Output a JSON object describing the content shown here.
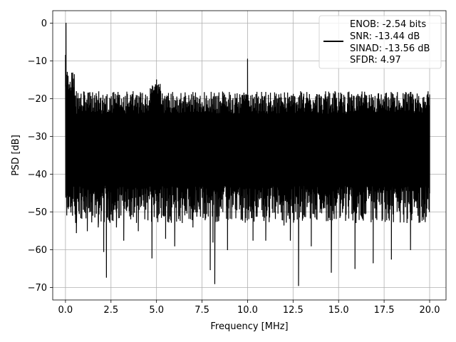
{
  "chart_data": {
    "type": "line",
    "title": "",
    "xlabel": "Frequency [MHz]",
    "ylabel": "PSD [dB]",
    "xlim": [
      -0.7,
      20.9
    ],
    "ylim": [
      -73.3,
      3.3
    ],
    "xticks": [
      0.0,
      2.5,
      5.0,
      7.5,
      10.0,
      12.5,
      15.0,
      17.5,
      20.0
    ],
    "xtick_labels": [
      "0.0",
      "2.5",
      "5.0",
      "7.5",
      "10.0",
      "12.5",
      "15.0",
      "17.5",
      "20.0"
    ],
    "yticks": [
      0,
      -10,
      -20,
      -30,
      -40,
      -50,
      -60,
      -70
    ],
    "ytick_labels": [
      "0",
      "−10",
      "−20",
      "−30",
      "−40",
      "−50",
      "−60",
      "−70"
    ],
    "grid": true,
    "legend_position": "top-right",
    "legend_entries": [
      "ENOB: -2.54 bits",
      "SNR: -13.44 dB",
      "SINAD: -13.56 dB",
      "SFDR: 4.97"
    ],
    "line_color": "#000000",
    "series": [
      {
        "name": "ENOB: -2.54 bits\nSNR: -13.44 dB\nSINAD: -13.56 dB\nSFDR: 4.97",
        "noise_floor_band_db": [
          -48,
          -21
        ],
        "points": [
          [
            0.0,
            -8.5
          ],
          [
            0.03,
            0.0
          ],
          [
            0.06,
            -40.5
          ],
          [
            0.1,
            -13
          ],
          [
            0.15,
            -25
          ],
          [
            0.25,
            -38
          ],
          [
            0.35,
            -16
          ],
          [
            0.45,
            -43
          ],
          [
            0.6,
            -55.5
          ],
          [
            0.8,
            -21
          ],
          [
            1.2,
            -55
          ],
          [
            1.4,
            -19.5
          ],
          [
            1.8,
            -54
          ],
          [
            2.1,
            -60.5
          ],
          [
            2.25,
            -67.3
          ],
          [
            2.5,
            -21
          ],
          [
            2.8,
            -54
          ],
          [
            3.2,
            -57.5
          ],
          [
            3.6,
            -19.5
          ],
          [
            4.0,
            -55
          ],
          [
            4.4,
            -19
          ],
          [
            4.75,
            -62.2
          ],
          [
            4.9,
            -17
          ],
          [
            5.0,
            -15
          ],
          [
            5.3,
            -38
          ],
          [
            5.5,
            -57
          ],
          [
            5.7,
            -20.5
          ],
          [
            6.0,
            -59
          ],
          [
            6.5,
            -21
          ],
          [
            7.0,
            -54
          ],
          [
            7.5,
            -21
          ],
          [
            7.95,
            -65.3
          ],
          [
            8.1,
            -58
          ],
          [
            8.2,
            -69
          ],
          [
            8.6,
            -21.5
          ],
          [
            8.9,
            -60
          ],
          [
            9.5,
            -21
          ],
          [
            9.8,
            -18.5
          ],
          [
            9.95,
            -28.5
          ],
          [
            10.0,
            -9.5
          ],
          [
            10.05,
            -32
          ],
          [
            10.3,
            -57.5
          ],
          [
            10.6,
            -21
          ],
          [
            11.0,
            -57.5
          ],
          [
            11.5,
            -21
          ],
          [
            12.0,
            -53.5
          ],
          [
            12.35,
            -57.5
          ],
          [
            12.8,
            -69.5
          ],
          [
            13.0,
            -21.5
          ],
          [
            13.5,
            -59
          ],
          [
            14.0,
            -22
          ],
          [
            14.6,
            -66
          ],
          [
            15.0,
            -22
          ],
          [
            15.9,
            -65
          ],
          [
            16.5,
            -21.5
          ],
          [
            16.9,
            -63.5
          ],
          [
            17.4,
            -22
          ],
          [
            17.9,
            -62.5
          ],
          [
            18.3,
            -22
          ],
          [
            18.95,
            -60
          ],
          [
            19.5,
            -21.5
          ],
          [
            19.85,
            -49
          ],
          [
            20.0,
            -19.5
          ],
          [
            20.0,
            -45
          ]
        ]
      }
    ]
  }
}
